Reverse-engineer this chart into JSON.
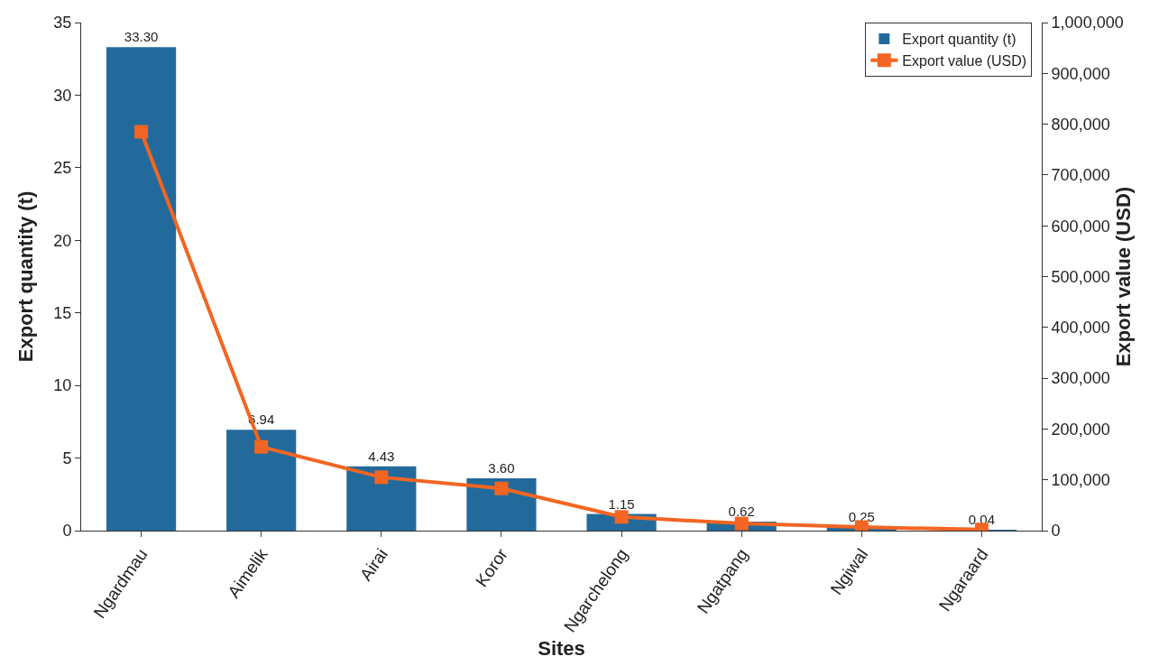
{
  "chart_data": {
    "type": "bar",
    "xlabel": "Sites",
    "ylabel": "Export quantity (t)",
    "y2label": "Export value (USD)",
    "categories": [
      "Ngardmau",
      "Aimelik",
      "Airai",
      "Koror",
      "Ngarchelong",
      "Ngatpang",
      "Ngiwal",
      "Ngaraard"
    ],
    "series": [
      {
        "name": "Export quantity (t)",
        "color": "#236a9c",
        "values": [
          33.3,
          6.94,
          4.43,
          3.6,
          1.15,
          0.62,
          0.25,
          0.04
        ],
        "value_labels": [
          "33.30",
          "6.94",
          "4.43",
          "3.60",
          "1.15",
          "0.62",
          "0.25",
          "0.04"
        ]
      },
      {
        "name": "Export value (USD)",
        "type": "line",
        "axis": "y2",
        "color": "#f26522",
        "marker": "square",
        "values": [
          785000,
          165000,
          105000,
          83000,
          27000,
          14000,
          7000,
          2000
        ]
      }
    ],
    "ylim": [
      0,
      35
    ],
    "yticks": [
      0,
      5,
      10,
      15,
      20,
      25,
      30,
      35
    ],
    "y2lim": [
      0,
      1000000
    ],
    "y2ticks": [
      {
        "value": 0,
        "label": "0"
      },
      {
        "value": 100000,
        "label": "100,000"
      },
      {
        "value": 200000,
        "label": "200,000"
      },
      {
        "value": 300000,
        "label": "300,000"
      },
      {
        "value": 400000,
        "label": "400,000"
      },
      {
        "value": 500000,
        "label": "500,000"
      },
      {
        "value": 600000,
        "label": "600,000"
      },
      {
        "value": 700000,
        "label": "700,000"
      },
      {
        "value": 800000,
        "label": "800,000"
      },
      {
        "value": 900000,
        "label": "900,000"
      },
      {
        "value": 1000000,
        "label": "1,000,000"
      }
    ],
    "grid": false,
    "legend": "top right"
  }
}
